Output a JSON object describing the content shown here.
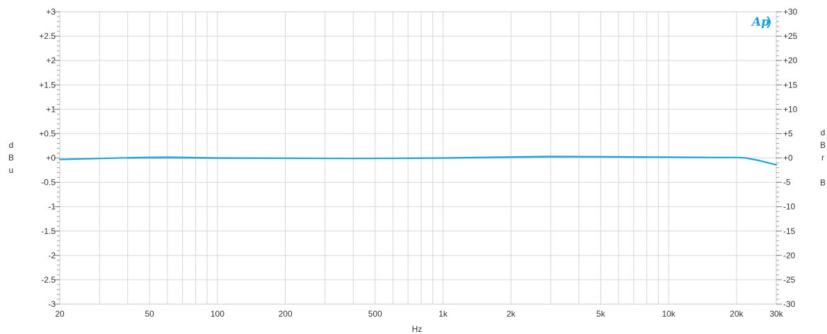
{
  "chart_data": {
    "type": "line",
    "xlabel": "Hz",
    "ylabel_left": "dBu",
    "ylabel_right": "dBr B",
    "logo": "Ap",
    "x_scale": "log",
    "xlim": [
      20,
      30000
    ],
    "ylim_left": [
      -3,
      3
    ],
    "ylim_right": [
      -30,
      30
    ],
    "grid": true,
    "x_ticks": [
      {
        "value": 20,
        "label": "20"
      },
      {
        "value": 50,
        "label": "50"
      },
      {
        "value": 100,
        "label": "100"
      },
      {
        "value": 200,
        "label": "200"
      },
      {
        "value": 500,
        "label": "500"
      },
      {
        "value": 1000,
        "label": "1k"
      },
      {
        "value": 2000,
        "label": "2k"
      },
      {
        "value": 5000,
        "label": "5k"
      },
      {
        "value": 10000,
        "label": "10k"
      },
      {
        "value": 20000,
        "label": "20k"
      },
      {
        "value": 30000,
        "label": "30k"
      }
    ],
    "y_ticks_left": [
      {
        "value": 3,
        "label": "+3"
      },
      {
        "value": 2.5,
        "label": "+2.5"
      },
      {
        "value": 2,
        "label": "+2"
      },
      {
        "value": 1.5,
        "label": "+1.5"
      },
      {
        "value": 1,
        "label": "+1"
      },
      {
        "value": 0.5,
        "label": "+0.5"
      },
      {
        "value": 0,
        "label": "+0"
      },
      {
        "value": -0.5,
        "label": "-0.5"
      },
      {
        "value": -1,
        "label": "-1"
      },
      {
        "value": -1.5,
        "label": "-1.5"
      },
      {
        "value": -2,
        "label": "-2"
      },
      {
        "value": -2.5,
        "label": "-2.5"
      },
      {
        "value": -3,
        "label": "-3"
      }
    ],
    "y_ticks_right": [
      {
        "value": 30,
        "label": "+30"
      },
      {
        "value": 25,
        "label": "+25"
      },
      {
        "value": 20,
        "label": "+20"
      },
      {
        "value": 15,
        "label": "+15"
      },
      {
        "value": 10,
        "label": "+10"
      },
      {
        "value": 5,
        "label": "+5"
      },
      {
        "value": 0,
        "label": "+0"
      },
      {
        "value": -5,
        "label": "-5"
      },
      {
        "value": -10,
        "label": "-10"
      },
      {
        "value": -15,
        "label": "-15"
      },
      {
        "value": -20,
        "label": "-20"
      },
      {
        "value": -25,
        "label": "-25"
      },
      {
        "value": -30,
        "label": "-30"
      }
    ],
    "series": [
      {
        "color": "#1aa3dd",
        "x": [
          20,
          30,
          45,
          60,
          100,
          200,
          400,
          700,
          1000,
          2000,
          3000,
          5000,
          10000,
          15000,
          20000,
          22000,
          25000,
          30000
        ],
        "y": [
          -0.03,
          -0.01,
          0.01,
          0.015,
          0.0,
          -0.005,
          -0.01,
          -0.005,
          0.0,
          0.02,
          0.03,
          0.025,
          0.015,
          0.01,
          0.01,
          0.0,
          -0.05,
          -0.14
        ]
      },
      {
        "color": "#b9c8cf",
        "x": [
          40,
          70,
          150,
          700,
          2000,
          4000,
          8000
        ],
        "y": [
          -0.01,
          -0.01,
          -0.01,
          -0.01,
          0.0,
          0.01,
          0.005
        ]
      }
    ],
    "colors": {
      "grid": "#d6d6d6",
      "frame": "#c8c8c8",
      "text": "#333333",
      "logo": "#1a9be0"
    }
  }
}
